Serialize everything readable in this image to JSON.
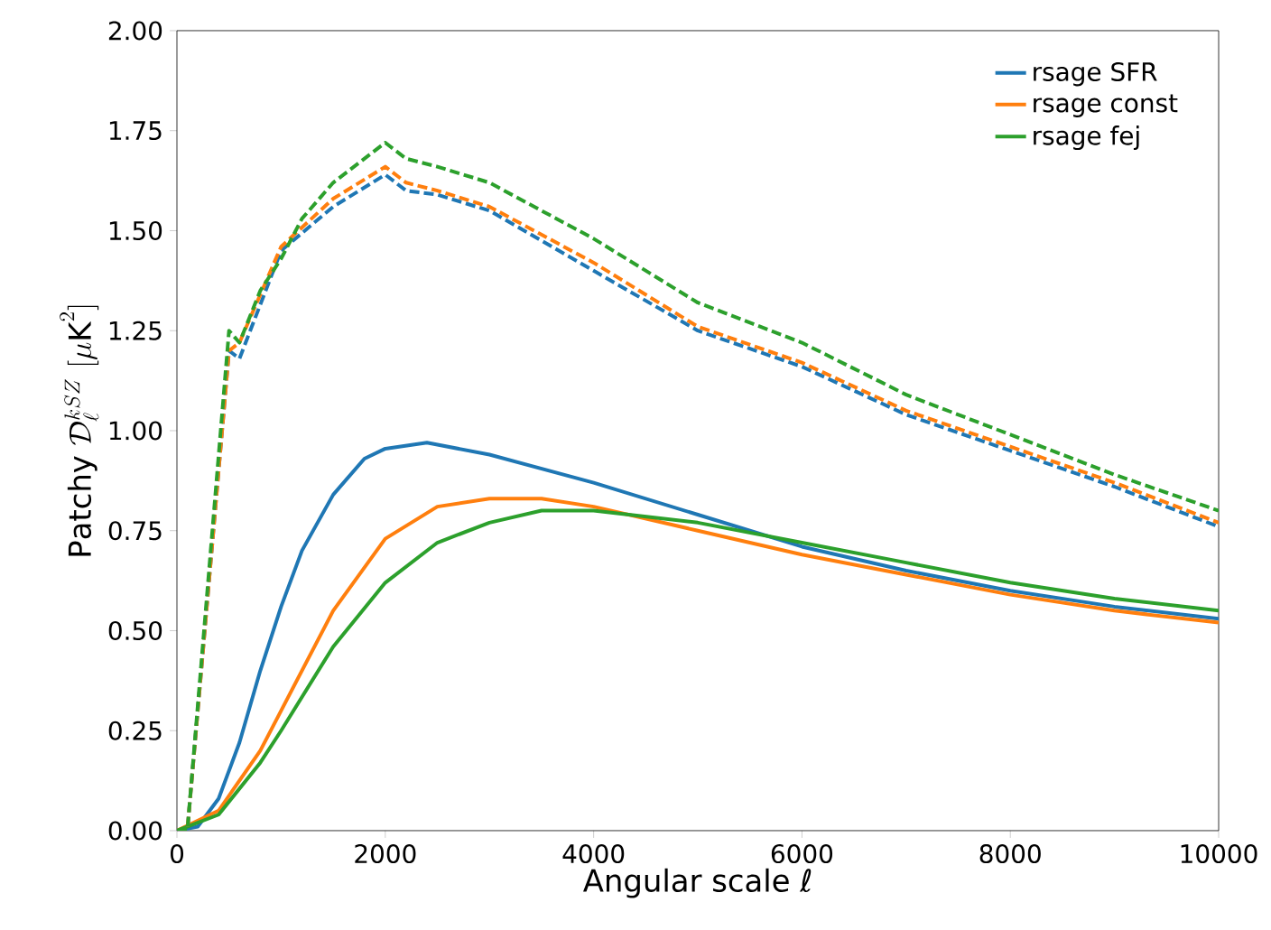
{
  "chart_data": {
    "type": "line",
    "xlabel": "Angular scale ℓ",
    "ylabel": "\\mathrm{Patchy}\\ \\mathcal{D}_\\ell^{kSZ}\\ [\\mu\\mathrm{K}^2]",
    "xlim": [
      0,
      10000
    ],
    "ylim": [
      0,
      2.0
    ],
    "xticks": [
      0,
      2000,
      4000,
      6000,
      8000,
      10000
    ],
    "yticks": [
      {
        "value": 0,
        "label": "0.00"
      },
      {
        "value": 0.25,
        "label": "0.25"
      },
      {
        "value": 0.5,
        "label": "0.50"
      },
      {
        "value": 0.75,
        "label": "0.75"
      },
      {
        "value": 1.0,
        "label": "1.00"
      },
      {
        "value": 1.25,
        "label": "1.25"
      },
      {
        "value": 1.5,
        "label": "1.50"
      },
      {
        "value": 1.75,
        "label": "1.75"
      },
      {
        "value": 2.0,
        "label": "2.00"
      }
    ],
    "legend": "top right",
    "grid": false,
    "marker": "none",
    "series": [
      {
        "name": "rsage SFR",
        "color": "#1f77b4",
        "line_style": "solid",
        "x": [
          0,
          200,
          400,
          600,
          800,
          1000,
          1200,
          1500,
          1800,
          2000,
          2400,
          3000,
          4000,
          5000,
          6000,
          7000,
          8000,
          9000,
          10000
        ],
        "values": [
          0,
          0.01,
          0.08,
          0.22,
          0.4,
          0.56,
          0.7,
          0.84,
          0.93,
          0.955,
          0.97,
          0.94,
          0.87,
          0.79,
          0.71,
          0.65,
          0.6,
          0.56,
          0.53
        ]
      },
      {
        "name": "rsage const",
        "color": "#ff7f0e",
        "line_style": "solid",
        "x": [
          0,
          400,
          800,
          1000,
          1500,
          2000,
          2500,
          3000,
          3500,
          4000,
          5000,
          6000,
          7000,
          8000,
          9000,
          10000
        ],
        "values": [
          0,
          0.05,
          0.2,
          0.3,
          0.55,
          0.73,
          0.81,
          0.83,
          0.83,
          0.81,
          0.75,
          0.69,
          0.64,
          0.59,
          0.55,
          0.52
        ]
      },
      {
        "name": "rsage fej",
        "color": "#2ca02c",
        "line_style": "solid",
        "x": [
          0,
          400,
          800,
          1000,
          1500,
          2000,
          2500,
          3000,
          3500,
          4000,
          5000,
          6000,
          7000,
          8000,
          9000,
          10000
        ],
        "values": [
          0,
          0.04,
          0.17,
          0.25,
          0.46,
          0.62,
          0.72,
          0.77,
          0.8,
          0.8,
          0.77,
          0.72,
          0.67,
          0.62,
          0.58,
          0.55
        ]
      },
      {
        "color": "#1f77b4",
        "line_style": "dashed",
        "x": [
          0,
          100,
          500,
          600,
          1000,
          1500,
          2000,
          2200,
          2500,
          3000,
          4000,
          5000,
          6000,
          7000,
          8000,
          9000,
          10000
        ],
        "values": [
          0,
          0,
          1.2,
          1.18,
          1.45,
          1.56,
          1.64,
          1.6,
          1.59,
          1.55,
          1.4,
          1.25,
          1.16,
          1.04,
          0.95,
          0.86,
          0.76
        ]
      },
      {
        "color": "#ff7f0e",
        "line_style": "dashed",
        "x": [
          0,
          100,
          500,
          600,
          1000,
          1500,
          2000,
          2200,
          2500,
          3000,
          4000,
          5000,
          6000,
          7000,
          8000,
          9000,
          10000
        ],
        "values": [
          0,
          0,
          1.2,
          1.22,
          1.46,
          1.58,
          1.66,
          1.62,
          1.6,
          1.56,
          1.42,
          1.26,
          1.17,
          1.05,
          0.96,
          0.87,
          0.77
        ]
      },
      {
        "color": "#2ca02c",
        "line_style": "dashed",
        "x": [
          0,
          100,
          500,
          600,
          800,
          1000,
          1200,
          1500,
          2000,
          2200,
          2500,
          3000,
          4000,
          5000,
          6000,
          7000,
          8000,
          9000,
          10000
        ],
        "values": [
          0,
          0,
          1.25,
          1.22,
          1.35,
          1.43,
          1.53,
          1.62,
          1.72,
          1.68,
          1.66,
          1.62,
          1.48,
          1.32,
          1.22,
          1.09,
          0.99,
          0.89,
          0.8
        ]
      }
    ]
  }
}
